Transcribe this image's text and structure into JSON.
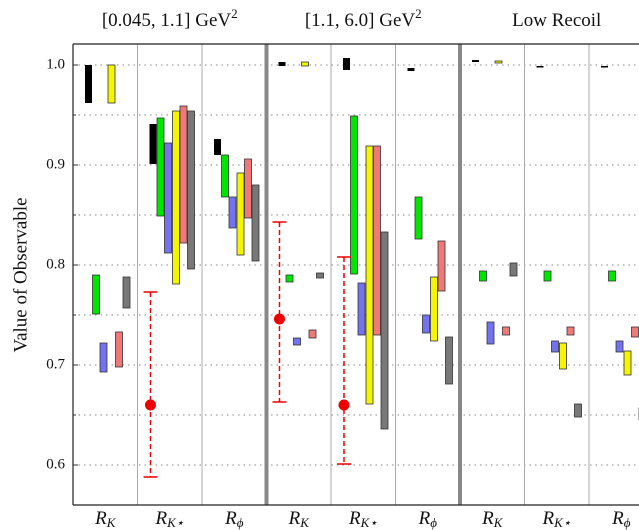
{
  "chart_data": {
    "type": "range-bars",
    "ylabel": "Value of Observable",
    "ylim": [
      0.56,
      1.021
    ],
    "yticks": [
      {
        "value": 0.6,
        "label": "0.6"
      },
      {
        "value": 0.7,
        "label": "0.7"
      },
      {
        "value": 0.8,
        "label": "0.8"
      },
      {
        "value": 0.9,
        "label": "0.9"
      },
      {
        "value": 1.0,
        "label": "1.0"
      }
    ],
    "minor_yticks": [
      0.65,
      0.75,
      0.85,
      0.95
    ],
    "grid": true,
    "groups": [
      {
        "title": {
          "text": "[0.045, 1.1] GeV",
          "sup": "2"
        },
        "categories": [
          {
            "main": "R",
            "sub": "K"
          },
          {
            "main": "R",
            "sub": "K⋆"
          },
          {
            "main": "R",
            "sub": "ϕ"
          }
        ]
      },
      {
        "title": {
          "text": "[1.1, 6.0] GeV",
          "sup": "2"
        },
        "categories": [
          {
            "main": "R",
            "sub": "K"
          },
          {
            "main": "R",
            "sub": "K⋆"
          },
          {
            "main": "R",
            "sub": "ϕ"
          }
        ]
      },
      {
        "title": {
          "text": "Low Recoil"
        },
        "categories": [
          {
            "main": "R",
            "sub": "K"
          },
          {
            "main": "R",
            "sub": "K⋆"
          },
          {
            "main": "R",
            "sub": "ϕ"
          }
        ]
      }
    ],
    "series": [
      {
        "color": "#000000",
        "low": [
          0.962,
          0.901,
          0.91,
          0.999,
          0.995,
          0.994,
          1.003,
          0.998,
          0.998
        ],
        "high": [
          1.0,
          0.941,
          0.926,
          1.003,
          1.007,
          0.997,
          1.005,
          0.999,
          0.999
        ]
      },
      {
        "color": "#00e600",
        "low": [
          0.751,
          0.849,
          0.868,
          0.783,
          0.791,
          0.826,
          0.784,
          0.784,
          0.784
        ],
        "high": [
          0.79,
          0.947,
          0.91,
          0.79,
          0.949,
          0.868,
          0.794,
          0.794,
          0.794
        ]
      },
      {
        "color": "#7373f0",
        "low": [
          0.693,
          0.812,
          0.837,
          0.72,
          0.73,
          0.732,
          0.721,
          0.713,
          0.713
        ],
        "high": [
          0.722,
          0.922,
          0.868,
          0.727,
          0.782,
          0.75,
          0.743,
          0.724,
          0.724
        ]
      },
      {
        "color": "#f5f500",
        "low": [
          0.962,
          0.781,
          0.81,
          0.999,
          0.661,
          0.724,
          1.002,
          0.696,
          0.69
        ],
        "high": [
          1.0,
          0.954,
          0.892,
          1.003,
          0.919,
          0.788,
          1.004,
          0.722,
          0.714
        ]
      },
      {
        "color": "#f07878",
        "low": [
          0.698,
          0.822,
          0.847,
          0.727,
          0.73,
          0.774,
          0.73,
          0.73,
          0.728
        ],
        "high": [
          0.733,
          0.959,
          0.906,
          0.735,
          0.919,
          0.824,
          0.738,
          0.738,
          0.738
        ]
      },
      {
        "color": "#787878",
        "low": [
          0.757,
          0.796,
          0.804,
          0.787,
          0.636,
          0.681,
          0.789,
          0.648,
          0.645
        ],
        "high": [
          0.788,
          0.954,
          0.88,
          0.792,
          0.833,
          0.728,
          0.802,
          0.661,
          0.657
        ]
      }
    ],
    "measurement": {
      "color": "#ee0000",
      "values": [
        null,
        0.66,
        null,
        0.746,
        0.66,
        null,
        null,
        null,
        null
      ],
      "lower": [
        null,
        0.588,
        null,
        0.663,
        null,
        null,
        null,
        null,
        null
      ],
      "upper": [
        null,
        0.773,
        null,
        0.843,
        0.808,
        null,
        null,
        null,
        null
      ],
      "lower_extra": [
        null,
        null,
        null,
        null,
        0.601,
        null,
        null,
        null,
        null
      ]
    }
  }
}
